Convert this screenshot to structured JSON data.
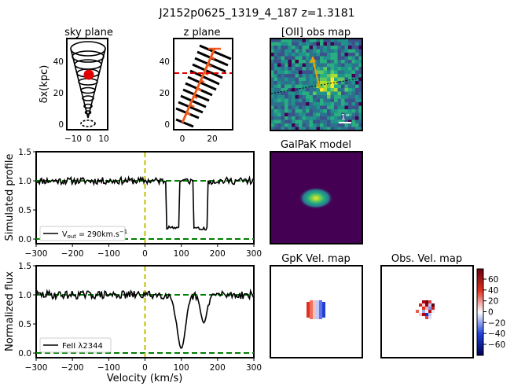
{
  "figure_title": "J2152p0625_1319_4_187 z=1.3181",
  "sky_plane": {
    "title": "sky plane",
    "ylabel": "δx(kpc)",
    "xticks": [
      "−10",
      "0",
      "10"
    ],
    "yticks": [
      "0",
      "20",
      "40"
    ]
  },
  "z_plane": {
    "title": "z plane",
    "xticks": [
      "0",
      "20"
    ],
    "yticks": [
      "0",
      "20",
      "40"
    ]
  },
  "oii_map": {
    "title": "[OII] obs map",
    "scale_label": "1\""
  },
  "galpak_model": {
    "title": "GalPaK model"
  },
  "gpk_vel_map": {
    "title": "GpK Vel. map"
  },
  "obs_vel_map": {
    "title": "Obs. Vel. map"
  },
  "colorbar": {
    "ticks": [
      "60",
      "40",
      "20",
      "0",
      "−20",
      "−40",
      "−60"
    ]
  },
  "colors": {
    "flux_line": "#000000",
    "continuum": "#008000",
    "zero_vel": "#bfbf00",
    "galaxy": "#e00000",
    "sightline": "#f05a1e"
  },
  "chart_data": [
    {
      "type": "line",
      "title": "Simulated profile",
      "ylabel": "Simulated profile",
      "xlabel": "",
      "xlim": [
        -300,
        300
      ],
      "ylim": [
        -0.08,
        1.5
      ],
      "xticks": [
        "−300",
        "−200",
        "−100",
        "0",
        "100",
        "200",
        "300"
      ],
      "yticks": [
        "0.0",
        "0.5",
        "1.0",
        "1.5"
      ],
      "legend": "V_out = 290km.s^-1",
      "legend_parts": {
        "prefix": "V",
        "sub": "out",
        "mid": " = 290km.s",
        "sup": "−1"
      },
      "continuum_level": 1.0,
      "zero_level": 0.0,
      "absorption_components": [
        {
          "x_start": 60,
          "x_end": 95,
          "depth_to": 0.2
        },
        {
          "x_start": 135,
          "x_end": 172,
          "depth_to": 0.18
        }
      ],
      "noise_amplitude": 0.06
    },
    {
      "type": "line",
      "title": "Normalized flux",
      "ylabel": "Normalized flux",
      "xlabel": "Velocity (km/s)",
      "xlim": [
        -300,
        300
      ],
      "ylim": [
        -0.08,
        1.5
      ],
      "xticks": [
        "−300",
        "−200",
        "−100",
        "0",
        "100",
        "200",
        "300"
      ],
      "yticks": [
        "0.0",
        "0.5",
        "1.0",
        "1.5"
      ],
      "legend": "FeII λ2344",
      "continuum_level": 1.0,
      "zero_level": 0.0,
      "absorption_components": [
        {
          "center": 100,
          "width": 12,
          "depth_to": 0.08
        },
        {
          "center": 162,
          "width": 9,
          "depth_to": 0.52
        }
      ],
      "noise_amplitude": 0.07
    }
  ]
}
